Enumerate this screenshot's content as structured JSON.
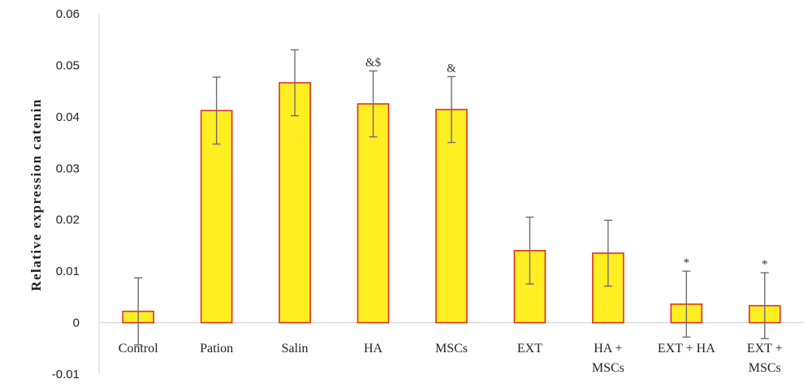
{
  "chart_data": {
    "type": "bar",
    "title": "",
    "xlabel": "",
    "ylabel": "Relative expression catenin",
    "ylim": [
      -0.01,
      0.06
    ],
    "yticks": [
      "-0.01",
      "0",
      "0.01",
      "0.02",
      "0.03",
      "0.04",
      "0.05",
      "0.06"
    ],
    "grid": false,
    "legend": "none",
    "bar_color": "#ffee22",
    "bar_edge_color": "#e0301e",
    "errorbar_color": "#6e6e6e",
    "categories": [
      [
        "Control"
      ],
      [
        "Pation"
      ],
      [
        "Salin"
      ],
      [
        "HA"
      ],
      [
        "MSCs"
      ],
      [
        "EXT"
      ],
      [
        "HA +",
        "MSCs"
      ],
      [
        "EXT + HA"
      ],
      [
        "EXT +",
        "MSCs"
      ]
    ],
    "values": [
      0.0022,
      0.0412,
      0.0466,
      0.0425,
      0.0414,
      0.014,
      0.0135,
      0.0036,
      0.0033
    ],
    "errors": [
      0.0065,
      0.0065,
      0.0064,
      0.0064,
      0.0064,
      0.0065,
      0.0064,
      0.0064,
      0.0064
    ],
    "annotations": [
      "",
      "",
      "",
      "&$",
      "&",
      "",
      "",
      "*",
      "*"
    ]
  }
}
